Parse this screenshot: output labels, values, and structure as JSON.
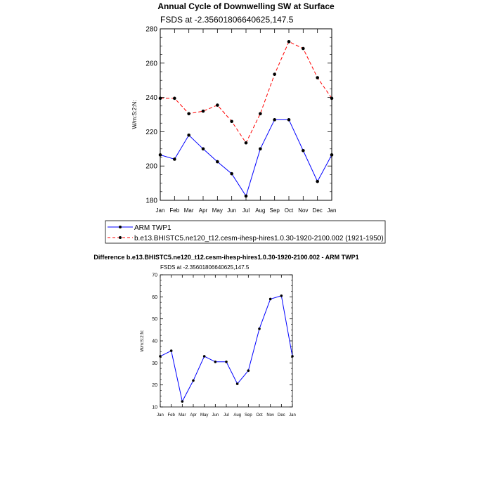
{
  "chart_data": [
    {
      "type": "line",
      "title": "Annual Cycle of Downwelling SW at Surface",
      "subtitle": "FSDS at -2.35601806640625,147.5",
      "ylabel": "W/m:S:2:N:",
      "xlabel": "",
      "ylim": [
        180,
        280
      ],
      "yticks": [
        180,
        200,
        220,
        240,
        260,
        280
      ],
      "categories": [
        "Jan",
        "Feb",
        "Mar",
        "Apr",
        "May",
        "Jun",
        "Jul",
        "Aug",
        "Sep",
        "Oct",
        "Nov",
        "Dec",
        "Jan"
      ],
      "series": [
        {
          "name": "ARM TWP1",
          "color": "#0000ff",
          "dash": "solid",
          "values": [
            206.5,
            204,
            218,
            210,
            202.5,
            195.5,
            182.5,
            210,
            227,
            227,
            209,
            191,
            206.5
          ]
        },
        {
          "name": "b.e13.BHISTC5.ne120_t12.cesm-ihesp-hires1.0.30-1920-2100.002 (1921-1950)",
          "color": "#ff0000",
          "dash": "dashed",
          "values": [
            239.5,
            239.5,
            230.5,
            232,
            235.5,
            226,
            213.5,
            230.5,
            253.5,
            272.5,
            268.5,
            251.5,
            239.5
          ]
        }
      ],
      "legend": "bottom"
    },
    {
      "type": "line",
      "title": "Difference b.e13.BHISTC5.ne120_t12.cesm-ihesp-hires1.0.30-1920-2100.002 - ARM TWP1",
      "subtitle": "FSDS at -2.35601806640625,147.5",
      "ylabel": "W/m:S:2:N:",
      "xlabel": "",
      "ylim": [
        10,
        70
      ],
      "yticks": [
        10,
        20,
        30,
        40,
        50,
        60,
        70
      ],
      "categories": [
        "Jan",
        "Feb",
        "Mar",
        "Apr",
        "May",
        "Jun",
        "Jul",
        "Aug",
        "Sep",
        "Oct",
        "Nov",
        "Dec",
        "Jan"
      ],
      "series": [
        {
          "name": "Difference",
          "color": "#0000ff",
          "dash": "solid",
          "values": [
            33,
            35.5,
            12.5,
            22,
            33,
            30.5,
            30.5,
            20.5,
            26.5,
            45.5,
            59,
            60.5,
            33
          ]
        }
      ]
    }
  ]
}
